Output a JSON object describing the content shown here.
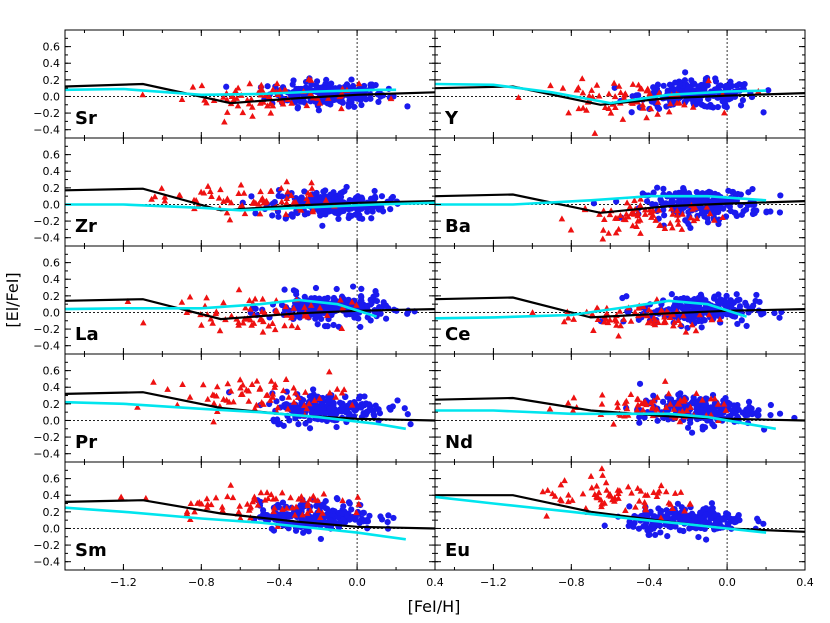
{
  "chart_data": {
    "type": "scatter",
    "xlabel": "[FeI/H]",
    "ylabel": "[El/FeI]",
    "xlim": [
      -1.5,
      0.4
    ],
    "ylim": [
      -0.5,
      0.8
    ],
    "xticks": [
      "−1.2",
      "−0.8",
      "−0.4",
      "0.0",
      "0.4"
    ],
    "xtick_values": [
      -1.2,
      -0.8,
      -0.4,
      0.0,
      0.4
    ],
    "yticks": [
      "−0.4",
      "−0.2",
      "0.0",
      "0.2",
      "0.4",
      "0.6"
    ],
    "ytick_values": [
      -0.4,
      -0.2,
      0.0,
      0.2,
      0.4,
      0.6
    ],
    "series_styles": {
      "triangles": {
        "color": "#ee1111",
        "marker": "triangle"
      },
      "circles": {
        "color": "#1a1aee",
        "marker": "circle"
      },
      "model_black": {
        "color": "#000000"
      },
      "model_cyan": {
        "color": "#00e5ee"
      }
    },
    "panels": [
      {
        "element": "Sr",
        "black_line": [
          [
            -1.5,
            0.12
          ],
          [
            -1.1,
            0.15
          ],
          [
            -0.65,
            -0.08
          ],
          [
            -0.3,
            -0.02
          ],
          [
            0.0,
            0.02
          ],
          [
            0.4,
            0.05
          ]
        ],
        "cyan_line": [
          [
            -1.5,
            0.08
          ],
          [
            -1.2,
            0.09
          ],
          [
            -0.8,
            0.02
          ],
          [
            -0.5,
            0.03
          ],
          [
            -0.2,
            0.06
          ],
          [
            0.1,
            0.08
          ],
          [
            0.2,
            0.08
          ]
        ],
        "tri_center": [
          -0.45,
          0.0
        ],
        "tri_spread": [
          0.3,
          0.12
        ],
        "circ_center": [
          -0.15,
          0.03
        ],
        "circ_spread": [
          0.2,
          0.1
        ]
      },
      {
        "element": "Y",
        "black_line": [
          [
            -1.5,
            0.1
          ],
          [
            -1.1,
            0.12
          ],
          [
            -0.65,
            -0.1
          ],
          [
            -0.3,
            -0.02
          ],
          [
            0.0,
            0.01
          ],
          [
            0.4,
            0.04
          ]
        ],
        "cyan_line": [
          [
            -1.5,
            0.15
          ],
          [
            -1.2,
            0.14
          ],
          [
            -0.9,
            0.05
          ],
          [
            -0.6,
            -0.08
          ],
          [
            -0.3,
            0.02
          ],
          [
            0.0,
            0.06
          ],
          [
            0.2,
            0.07
          ]
        ],
        "tri_center": [
          -0.55,
          -0.02
        ],
        "tri_spread": [
          0.3,
          0.14
        ],
        "circ_center": [
          -0.15,
          0.02
        ],
        "circ_spread": [
          0.2,
          0.11
        ]
      },
      {
        "element": "Zr",
        "black_line": [
          [
            -1.5,
            0.17
          ],
          [
            -1.1,
            0.19
          ],
          [
            -0.7,
            -0.07
          ],
          [
            -0.3,
            -0.01
          ],
          [
            0.0,
            0.02
          ],
          [
            0.4,
            0.04
          ]
        ],
        "cyan_line": [
          [
            -1.5,
            0.0
          ],
          [
            -1.2,
            0.0
          ],
          [
            -0.8,
            -0.04
          ],
          [
            -0.6,
            -0.07
          ],
          [
            -0.2,
            -0.03
          ],
          [
            0.1,
            0.0
          ],
          [
            0.4,
            0.02
          ]
        ],
        "tri_center": [
          -0.55,
          0.05
        ],
        "tri_spread": [
          0.3,
          0.14
        ],
        "circ_center": [
          -0.15,
          0.0
        ],
        "circ_spread": [
          0.2,
          0.12
        ]
      },
      {
        "element": "Ba",
        "black_line": [
          [
            -1.5,
            0.1
          ],
          [
            -1.1,
            0.12
          ],
          [
            -0.65,
            -0.1
          ],
          [
            -0.3,
            -0.02
          ],
          [
            0.0,
            0.01
          ],
          [
            0.4,
            0.04
          ]
        ],
        "cyan_line": [
          [
            -1.5,
            0.0
          ],
          [
            -1.1,
            0.0
          ],
          [
            -0.7,
            0.05
          ],
          [
            -0.4,
            0.1
          ],
          [
            -0.1,
            0.1
          ],
          [
            0.2,
            0.05
          ]
        ],
        "tri_center": [
          -0.4,
          -0.15
        ],
        "tri_spread": [
          0.25,
          0.12
        ],
        "circ_center": [
          -0.12,
          0.0
        ],
        "circ_spread": [
          0.2,
          0.12
        ]
      },
      {
        "element": "La",
        "black_line": [
          [
            -1.5,
            0.14
          ],
          [
            -1.1,
            0.16
          ],
          [
            -0.7,
            -0.08
          ],
          [
            -0.3,
            -0.01
          ],
          [
            0.0,
            0.02
          ],
          [
            0.4,
            0.04
          ]
        ],
        "cyan_line": [
          [
            -1.5,
            0.04
          ],
          [
            -1.2,
            0.05
          ],
          [
            -0.8,
            0.05
          ],
          [
            -0.5,
            0.1
          ],
          [
            -0.3,
            0.15
          ],
          [
            -0.1,
            0.1
          ],
          [
            0.1,
            -0.05
          ]
        ],
        "tri_center": [
          -0.5,
          0.0
        ],
        "tri_spread": [
          0.3,
          0.14
        ],
        "circ_center": [
          -0.15,
          0.05
        ],
        "circ_spread": [
          0.2,
          0.12
        ]
      },
      {
        "element": "Ce",
        "black_line": [
          [
            -1.5,
            0.16
          ],
          [
            -1.1,
            0.18
          ],
          [
            -0.7,
            -0.06
          ],
          [
            -0.3,
            -0.01
          ],
          [
            0.0,
            0.02
          ],
          [
            0.4,
            0.04
          ]
        ],
        "cyan_line": [
          [
            -1.5,
            -0.07
          ],
          [
            -1.2,
            -0.06
          ],
          [
            -0.8,
            -0.03
          ],
          [
            -0.5,
            0.07
          ],
          [
            -0.3,
            0.14
          ],
          [
            -0.1,
            0.1
          ],
          [
            0.1,
            -0.05
          ]
        ],
        "tri_center": [
          -0.45,
          -0.05
        ],
        "tri_spread": [
          0.28,
          0.13
        ],
        "circ_center": [
          -0.15,
          0.03
        ],
        "circ_spread": [
          0.2,
          0.12
        ]
      },
      {
        "element": "Pr",
        "black_line": [
          [
            -1.5,
            0.32
          ],
          [
            -1.1,
            0.34
          ],
          [
            -0.7,
            0.15
          ],
          [
            -0.3,
            0.06
          ],
          [
            0.0,
            0.02
          ],
          [
            0.4,
            0.0
          ]
        ],
        "cyan_line": [
          [
            -1.5,
            0.22
          ],
          [
            -1.2,
            0.2
          ],
          [
            -0.8,
            0.14
          ],
          [
            -0.5,
            0.1
          ],
          [
            -0.2,
            0.04
          ],
          [
            0.1,
            -0.04
          ],
          [
            0.25,
            -0.1
          ]
        ],
        "tri_center": [
          -0.5,
          0.3
        ],
        "tri_spread": [
          0.3,
          0.14
        ],
        "circ_center": [
          -0.15,
          0.15
        ],
        "circ_spread": [
          0.2,
          0.12
        ]
      },
      {
        "element": "Nd",
        "black_line": [
          [
            -1.5,
            0.25
          ],
          [
            -1.1,
            0.27
          ],
          [
            -0.7,
            0.12
          ],
          [
            -0.3,
            0.05
          ],
          [
            0.0,
            0.02
          ],
          [
            0.4,
            0.0
          ]
        ],
        "cyan_line": [
          [
            -1.5,
            0.12
          ],
          [
            -1.2,
            0.12
          ],
          [
            -0.8,
            0.08
          ],
          [
            -0.5,
            0.08
          ],
          [
            -0.3,
            0.08
          ],
          [
            -0.1,
            0.04
          ],
          [
            0.1,
            -0.04
          ],
          [
            0.25,
            -0.1
          ]
        ],
        "tri_center": [
          -0.4,
          0.15
        ],
        "tri_spread": [
          0.3,
          0.12
        ],
        "circ_center": [
          -0.15,
          0.12
        ],
        "circ_spread": [
          0.2,
          0.12
        ]
      },
      {
        "element": "Sm",
        "black_line": [
          [
            -1.5,
            0.32
          ],
          [
            -1.1,
            0.34
          ],
          [
            -0.7,
            0.18
          ],
          [
            -0.3,
            0.08
          ],
          [
            0.0,
            0.02
          ],
          [
            0.4,
            0.0
          ]
        ],
        "cyan_line": [
          [
            -1.5,
            0.25
          ],
          [
            -1.2,
            0.2
          ],
          [
            -0.8,
            0.12
          ],
          [
            -0.5,
            0.07
          ],
          [
            -0.2,
            0.0
          ],
          [
            0.0,
            -0.05
          ],
          [
            0.25,
            -0.13
          ]
        ],
        "tri_center": [
          -0.55,
          0.3
        ],
        "tri_spread": [
          0.3,
          0.12
        ],
        "circ_center": [
          -0.2,
          0.15
        ],
        "circ_spread": [
          0.2,
          0.12
        ]
      },
      {
        "element": "Eu",
        "black_line": [
          [
            -1.5,
            0.4
          ],
          [
            -1.1,
            0.4
          ],
          [
            -0.7,
            0.2
          ],
          [
            -0.3,
            0.08
          ],
          [
            0.0,
            0.0
          ],
          [
            0.4,
            -0.04
          ]
        ],
        "cyan_line": [
          [
            -1.5,
            0.38
          ],
          [
            -1.2,
            0.3
          ],
          [
            -0.8,
            0.2
          ],
          [
            -0.5,
            0.12
          ],
          [
            -0.2,
            0.05
          ],
          [
            0.0,
            0.0
          ],
          [
            0.2,
            -0.05
          ]
        ],
        "tri_center": [
          -0.55,
          0.35
        ],
        "tri_spread": [
          0.3,
          0.15
        ],
        "circ_center": [
          -0.2,
          0.1
        ],
        "circ_spread": [
          0.2,
          0.1
        ]
      }
    ]
  }
}
